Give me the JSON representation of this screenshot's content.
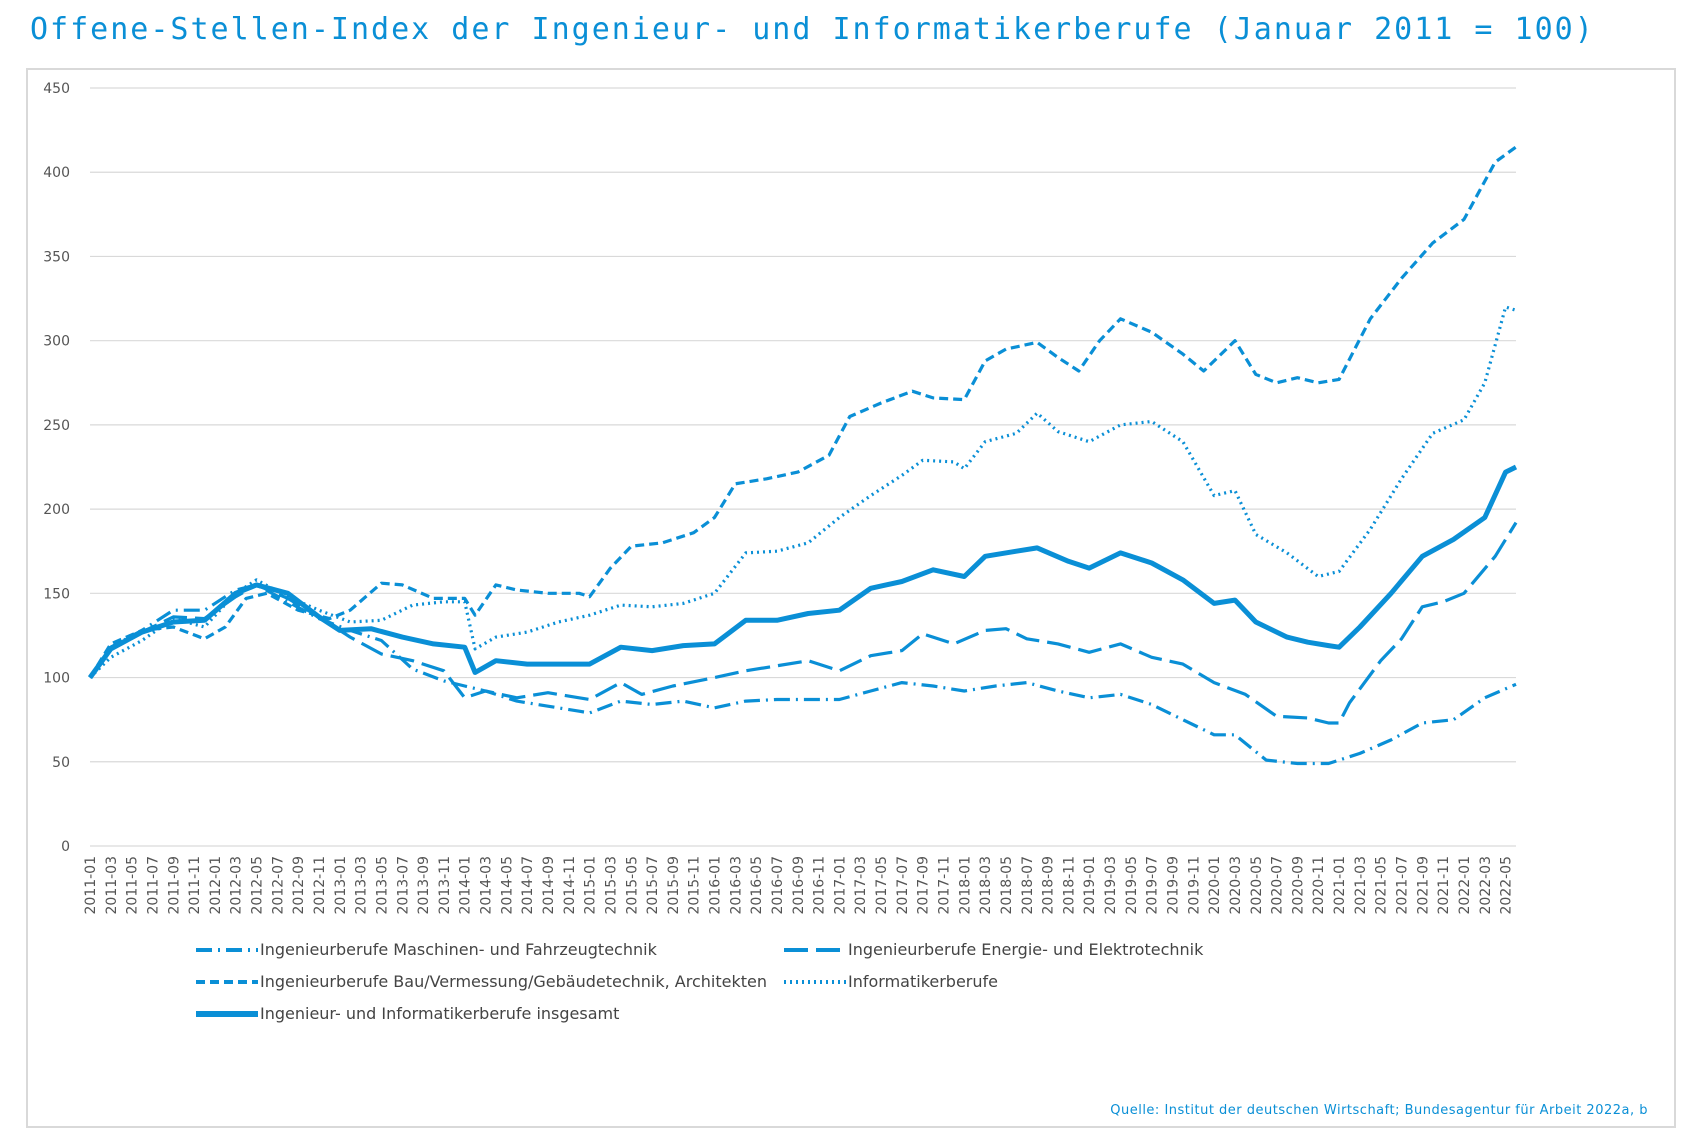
{
  "title": "Offene-Stellen-Index der Ingenieur- und Informatikerberufe (Januar 2011 = 100)",
  "source": "Quelle: Institut der deutschen Wirtschaft; Bundesagentur für Arbeit 2022a, b",
  "colors": {
    "line": "#0a8fd6",
    "grid": "#d9d9d9",
    "axis_text": "#555555"
  },
  "chart_data": {
    "type": "line",
    "title": "Offene-Stellen-Index der Ingenieur- und Informatikerberufe (Januar 2011 = 100)",
    "xlabel": "",
    "ylabel": "",
    "ylim": [
      0,
      450
    ],
    "yticks": [
      0,
      50,
      100,
      150,
      200,
      250,
      300,
      350,
      400,
      450
    ],
    "grid": "horizontal",
    "legend_position": "bottom",
    "x_start": "2011-01",
    "x_end": "2022-06",
    "x_tick_labels": [
      "2011-01",
      "2011-03",
      "2011-05",
      "2011-07",
      "2011-09",
      "2011-11",
      "2012-01",
      "2012-03",
      "2012-05",
      "2012-07",
      "2012-09",
      "2012-11",
      "2013-01",
      "2013-03",
      "2013-05",
      "2013-07",
      "2013-09",
      "2013-11",
      "2014-01",
      "2014-03",
      "2014-05",
      "2014-07",
      "2014-09",
      "2014-11",
      "2015-01",
      "2015-03",
      "2015-05",
      "2015-07",
      "2015-09",
      "2015-11",
      "2016-01",
      "2016-03",
      "2016-05",
      "2016-07",
      "2016-09",
      "2016-11",
      "2017-01",
      "2017-03",
      "2017-05",
      "2017-07",
      "2017-09",
      "2017-11",
      "2018-01",
      "2018-03",
      "2018-05",
      "2018-07",
      "2018-09",
      "2018-11",
      "2019-01",
      "2019-03",
      "2019-05",
      "2019-07",
      "2019-09",
      "2019-11",
      "2020-01",
      "2020-03",
      "2020-05",
      "2020-07",
      "2020-09",
      "2020-11",
      "2021-01",
      "2021-03",
      "2021-05",
      "2021-07",
      "2021-09",
      "2021-11",
      "2022-01",
      "2022-03",
      "2022-05"
    ],
    "series": [
      {
        "name": "Ingenieurberufe Maschinen- und Fahrzeugtechnik",
        "dash": "dash-dot",
        "points": [
          [
            "2011-01",
            100
          ],
          [
            "2011-03",
            118
          ],
          [
            "2011-06",
            128
          ],
          [
            "2011-09",
            140
          ],
          [
            "2011-12",
            140
          ],
          [
            "2012-03",
            152
          ],
          [
            "2012-05",
            155
          ],
          [
            "2012-08",
            145
          ],
          [
            "2012-11",
            135
          ],
          [
            "2013-02",
            128
          ],
          [
            "2013-05",
            122
          ],
          [
            "2013-08",
            105
          ],
          [
            "2013-11",
            98
          ],
          [
            "2014-01",
            95
          ],
          [
            "2014-03",
            92
          ],
          [
            "2014-06",
            86
          ],
          [
            "2014-09",
            83
          ],
          [
            "2014-12",
            80
          ],
          [
            "2015-01",
            79
          ],
          [
            "2015-04",
            86
          ],
          [
            "2015-07",
            84
          ],
          [
            "2015-10",
            86
          ],
          [
            "2016-01",
            82
          ],
          [
            "2016-04",
            86
          ],
          [
            "2016-07",
            87
          ],
          [
            "2016-10",
            87
          ],
          [
            "2017-01",
            87
          ],
          [
            "2017-04",
            92
          ],
          [
            "2017-07",
            97
          ],
          [
            "2017-10",
            95
          ],
          [
            "2018-01",
            92
          ],
          [
            "2018-04",
            95
          ],
          [
            "2018-07",
            97
          ],
          [
            "2018-10",
            92
          ],
          [
            "2019-01",
            88
          ],
          [
            "2019-04",
            90
          ],
          [
            "2019-07",
            84
          ],
          [
            "2019-10",
            75
          ],
          [
            "2020-01",
            66
          ],
          [
            "2020-03",
            66
          ],
          [
            "2020-06",
            51
          ],
          [
            "2020-09",
            49
          ],
          [
            "2020-12",
            49
          ],
          [
            "2021-03",
            55
          ],
          [
            "2021-06",
            63
          ],
          [
            "2021-09",
            73
          ],
          [
            "2021-12",
            75
          ],
          [
            "2022-03",
            88
          ],
          [
            "2022-06",
            96
          ]
        ]
      },
      {
        "name": "Ingenieurberufe Energie- und Elektrotechnik",
        "dash": "long-dash",
        "points": [
          [
            "2011-01",
            100
          ],
          [
            "2011-03",
            118
          ],
          [
            "2011-06",
            127
          ],
          [
            "2011-09",
            136
          ],
          [
            "2011-12",
            135
          ],
          [
            "2012-03",
            148
          ],
          [
            "2012-05",
            155
          ],
          [
            "2012-08",
            147
          ],
          [
            "2012-11",
            136
          ],
          [
            "2013-02",
            124
          ],
          [
            "2013-05",
            114
          ],
          [
            "2013-08",
            110
          ],
          [
            "2013-11",
            104
          ],
          [
            "2014-01",
            88
          ],
          [
            "2014-03",
            92
          ],
          [
            "2014-06",
            88
          ],
          [
            "2014-09",
            91
          ],
          [
            "2014-12",
            88
          ],
          [
            "2015-01",
            87
          ],
          [
            "2015-04",
            97
          ],
          [
            "2015-06",
            90
          ],
          [
            "2015-09",
            95
          ],
          [
            "2016-01",
            100
          ],
          [
            "2016-04",
            104
          ],
          [
            "2016-07",
            107
          ],
          [
            "2016-10",
            110
          ],
          [
            "2017-01",
            104
          ],
          [
            "2017-04",
            113
          ],
          [
            "2017-07",
            116
          ],
          [
            "2017-09",
            126
          ],
          [
            "2017-12",
            120
          ],
          [
            "2018-03",
            128
          ],
          [
            "2018-05",
            129
          ],
          [
            "2018-07",
            123
          ],
          [
            "2018-10",
            120
          ],
          [
            "2019-01",
            115
          ],
          [
            "2019-04",
            120
          ],
          [
            "2019-07",
            112
          ],
          [
            "2019-10",
            108
          ],
          [
            "2020-01",
            97
          ],
          [
            "2020-04",
            90
          ],
          [
            "2020-07",
            77
          ],
          [
            "2020-10",
            76
          ],
          [
            "2020-12",
            73
          ],
          [
            "2021-01",
            73
          ],
          [
            "2021-02",
            85
          ],
          [
            "2021-05",
            110
          ],
          [
            "2021-07",
            123
          ],
          [
            "2021-09",
            142
          ],
          [
            "2021-11",
            145
          ],
          [
            "2022-01",
            150
          ],
          [
            "2022-04",
            172
          ],
          [
            "2022-06",
            192
          ]
        ]
      },
      {
        "name": "Ingenieurberufe Bau/Vermessung/Gebäudetechnik, Architekten",
        "dash": "short-dash",
        "points": [
          [
            "2011-01",
            100
          ],
          [
            "2011-03",
            120
          ],
          [
            "2011-06",
            128
          ],
          [
            "2011-09",
            130
          ],
          [
            "2011-12",
            123
          ],
          [
            "2012-02",
            130
          ],
          [
            "2012-04",
            147
          ],
          [
            "2012-06",
            150
          ],
          [
            "2012-09",
            140
          ],
          [
            "2012-12",
            135
          ],
          [
            "2013-02",
            140
          ],
          [
            "2013-05",
            156
          ],
          [
            "2013-07",
            155
          ],
          [
            "2013-10",
            147
          ],
          [
            "2014-01",
            147
          ],
          [
            "2014-02",
            137
          ],
          [
            "2014-04",
            155
          ],
          [
            "2014-06",
            152
          ],
          [
            "2014-09",
            150
          ],
          [
            "2014-12",
            150
          ],
          [
            "2015-01",
            148
          ],
          [
            "2015-03",
            165
          ],
          [
            "2015-05",
            178
          ],
          [
            "2015-08",
            180
          ],
          [
            "2015-11",
            186
          ],
          [
            "2016-01",
            195
          ],
          [
            "2016-03",
            215
          ],
          [
            "2016-06",
            218
          ],
          [
            "2016-09",
            222
          ],
          [
            "2016-12",
            232
          ],
          [
            "2017-02",
            255
          ],
          [
            "2017-05",
            263
          ],
          [
            "2017-08",
            270
          ],
          [
            "2017-10",
            266
          ],
          [
            "2018-01",
            265
          ],
          [
            "2018-03",
            288
          ],
          [
            "2018-05",
            295
          ],
          [
            "2018-08",
            299
          ],
          [
            "2018-10",
            290
          ],
          [
            "2018-12",
            282
          ],
          [
            "2019-02",
            300
          ],
          [
            "2019-04",
            313
          ],
          [
            "2019-07",
            305
          ],
          [
            "2019-10",
            292
          ],
          [
            "2019-12",
            282
          ],
          [
            "2020-03",
            300
          ],
          [
            "2020-05",
            280
          ],
          [
            "2020-07",
            275
          ],
          [
            "2020-09",
            278
          ],
          [
            "2020-11",
            275
          ],
          [
            "2021-01",
            277
          ],
          [
            "2021-04",
            313
          ],
          [
            "2021-07",
            337
          ],
          [
            "2021-10",
            358
          ],
          [
            "2022-01",
            372
          ],
          [
            "2022-04",
            406
          ],
          [
            "2022-06",
            415
          ]
        ]
      },
      {
        "name": "Informatikerberufe",
        "dash": "dotted",
        "points": [
          [
            "2011-01",
            100
          ],
          [
            "2011-03",
            112
          ],
          [
            "2011-06",
            122
          ],
          [
            "2011-09",
            135
          ],
          [
            "2011-12",
            130
          ],
          [
            "2012-03",
            150
          ],
          [
            "2012-05",
            158
          ],
          [
            "2012-08",
            148
          ],
          [
            "2012-11",
            140
          ],
          [
            "2013-02",
            133
          ],
          [
            "2013-05",
            134
          ],
          [
            "2013-08",
            143
          ],
          [
            "2013-11",
            145
          ],
          [
            "2014-01",
            145
          ],
          [
            "2014-02",
            117
          ],
          [
            "2014-04",
            124
          ],
          [
            "2014-07",
            127
          ],
          [
            "2014-10",
            133
          ],
          [
            "2015-01",
            137
          ],
          [
            "2015-04",
            143
          ],
          [
            "2015-07",
            142
          ],
          [
            "2015-10",
            144
          ],
          [
            "2016-01",
            150
          ],
          [
            "2016-04",
            174
          ],
          [
            "2016-07",
            175
          ],
          [
            "2016-10",
            180
          ],
          [
            "2017-01",
            195
          ],
          [
            "2017-04",
            208
          ],
          [
            "2017-07",
            220
          ],
          [
            "2017-09",
            229
          ],
          [
            "2017-12",
            228
          ],
          [
            "2018-01",
            224
          ],
          [
            "2018-03",
            240
          ],
          [
            "2018-06",
            245
          ],
          [
            "2018-08",
            257
          ],
          [
            "2018-10",
            246
          ],
          [
            "2019-01",
            240
          ],
          [
            "2019-04",
            250
          ],
          [
            "2019-07",
            252
          ],
          [
            "2019-10",
            240
          ],
          [
            "2020-01",
            208
          ],
          [
            "2020-03",
            211
          ],
          [
            "2020-05",
            185
          ],
          [
            "2020-08",
            174
          ],
          [
            "2020-11",
            160
          ],
          [
            "2021-01",
            163
          ],
          [
            "2021-04",
            188
          ],
          [
            "2021-07",
            218
          ],
          [
            "2021-10",
            245
          ],
          [
            "2022-01",
            253
          ],
          [
            "2022-03",
            275
          ],
          [
            "2022-05",
            320
          ],
          [
            "2022-06",
            318
          ]
        ]
      },
      {
        "name": "Ingenieur- und Informatikerberufe insgesamt",
        "dash": "solid",
        "points": [
          [
            "2011-01",
            100
          ],
          [
            "2011-03",
            117
          ],
          [
            "2011-06",
            127
          ],
          [
            "2011-09",
            133
          ],
          [
            "2011-12",
            134
          ],
          [
            "2012-03",
            150
          ],
          [
            "2012-05",
            155
          ],
          [
            "2012-08",
            150
          ],
          [
            "2012-11",
            136
          ],
          [
            "2013-01",
            128
          ],
          [
            "2013-04",
            129
          ],
          [
            "2013-07",
            124
          ],
          [
            "2013-10",
            120
          ],
          [
            "2014-01",
            118
          ],
          [
            "2014-02",
            103
          ],
          [
            "2014-04",
            110
          ],
          [
            "2014-07",
            108
          ],
          [
            "2014-10",
            108
          ],
          [
            "2015-01",
            108
          ],
          [
            "2015-04",
            118
          ],
          [
            "2015-07",
            116
          ],
          [
            "2015-10",
            119
          ],
          [
            "2016-01",
            120
          ],
          [
            "2016-04",
            134
          ],
          [
            "2016-07",
            134
          ],
          [
            "2016-10",
            138
          ],
          [
            "2017-01",
            140
          ],
          [
            "2017-04",
            153
          ],
          [
            "2017-07",
            157
          ],
          [
            "2017-10",
            164
          ],
          [
            "2018-01",
            160
          ],
          [
            "2018-03",
            172
          ],
          [
            "2018-06",
            175
          ],
          [
            "2018-08",
            177
          ],
          [
            "2018-11",
            169
          ],
          [
            "2019-01",
            165
          ],
          [
            "2019-04",
            174
          ],
          [
            "2019-07",
            168
          ],
          [
            "2019-10",
            158
          ],
          [
            "2020-01",
            144
          ],
          [
            "2020-03",
            146
          ],
          [
            "2020-05",
            133
          ],
          [
            "2020-08",
            124
          ],
          [
            "2020-10",
            121
          ],
          [
            "2020-12",
            119
          ],
          [
            "2021-01",
            118
          ],
          [
            "2021-03",
            130
          ],
          [
            "2021-06",
            150
          ],
          [
            "2021-09",
            172
          ],
          [
            "2021-12",
            182
          ],
          [
            "2022-03",
            195
          ],
          [
            "2022-05",
            222
          ],
          [
            "2022-06",
            225
          ]
        ]
      }
    ]
  }
}
